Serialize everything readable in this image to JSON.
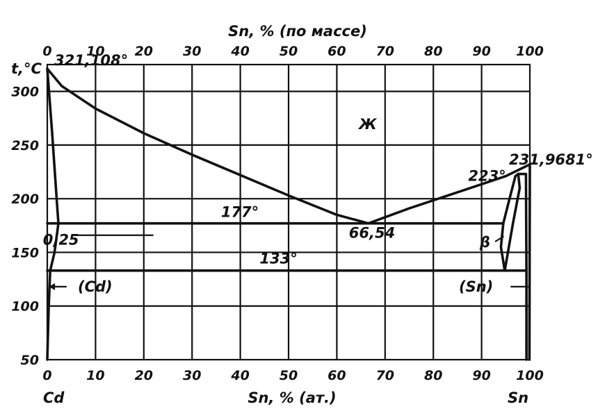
{
  "chart_data": {
    "type": "line",
    "title": "",
    "top_axis_label": "Sn, % (по массе)",
    "bottom_axis_label": "Sn, % (ат.)",
    "ylabel": "t,°C",
    "left_component": "Cd",
    "right_component": "Sn",
    "xlim": [
      0,
      100
    ],
    "ylim": [
      50,
      325
    ],
    "x_ticks": [
      0,
      10,
      20,
      30,
      40,
      50,
      60,
      70,
      80,
      90,
      100
    ],
    "top_ticks": [
      0,
      10,
      20,
      30,
      40,
      50,
      60,
      70,
      80,
      90,
      100
    ],
    "y_ticks": [
      50,
      100,
      150,
      200,
      250,
      300
    ],
    "grid": true,
    "series": [
      {
        "values": [
          [
            0,
            321.1
          ],
          [
            3,
            305
          ],
          [
            10,
            284
          ],
          [
            20,
            261
          ],
          [
            30,
            241
          ],
          [
            40,
            222
          ],
          [
            50,
            203
          ],
          [
            60,
            185
          ],
          [
            66.54,
            177
          ]
        ]
      },
      {
        "values": [
          [
            66.54,
            177
          ],
          [
            75,
            191
          ],
          [
            85,
            206
          ],
          [
            95,
            221
          ],
          [
            100,
            231.97
          ]
        ]
      },
      {
        "values": [
          [
            0,
            321.1
          ],
          [
            1,
            262
          ],
          [
            2,
            196
          ],
          [
            2.3,
            177
          ],
          [
            1.5,
            150
          ],
          [
            0.6,
            133
          ],
          [
            0.3,
            100
          ],
          [
            0,
            50
          ]
        ]
      },
      {
        "values": [
          [
            0,
            177
          ],
          [
            94.5,
            177
          ]
        ]
      },
      {
        "values": [
          [
            0,
            133
          ],
          [
            99,
            133
          ]
        ]
      },
      {
        "values": [
          [
            94.5,
            177
          ],
          [
            95.5,
            195
          ],
          [
            97,
            221
          ],
          [
            97.6,
            223
          ],
          [
            97.9,
            210
          ],
          [
            96.5,
            177
          ],
          [
            94.8,
            133
          ],
          [
            94,
            155
          ],
          [
            94.5,
            177
          ]
        ]
      },
      {
        "values": [
          [
            97.6,
            223
          ],
          [
            99.2,
            223
          ],
          [
            99.3,
            133
          ],
          [
            99.3,
            50
          ]
        ]
      },
      {
        "values": [
          [
            99.9,
            50
          ],
          [
            100,
            231.97
          ]
        ]
      }
    ],
    "annotations": [
      {
        "text": "321,108°",
        "x": 0,
        "y": 321.1
      },
      {
        "text": "Ж",
        "x": 66,
        "y": 268
      },
      {
        "text": "231,9681°",
        "x": 100,
        "y": 231.97
      },
      {
        "text": "223°",
        "x": 97.6,
        "y": 223
      },
      {
        "text": "177°",
        "x": 36,
        "y": 177
      },
      {
        "text": "0,25",
        "x": 0.25,
        "y": 165
      },
      {
        "text": "66,54",
        "x": 66.54,
        "y": 177
      },
      {
        "text": "β",
        "x": 94.5,
        "y": 160
      },
      {
        "text": "133°",
        "x": 44,
        "y": 133
      },
      {
        "text": "(Cd)",
        "x": 0,
        "y": 118
      },
      {
        "text": "(Sn)",
        "x": 100,
        "y": 118
      }
    ]
  }
}
